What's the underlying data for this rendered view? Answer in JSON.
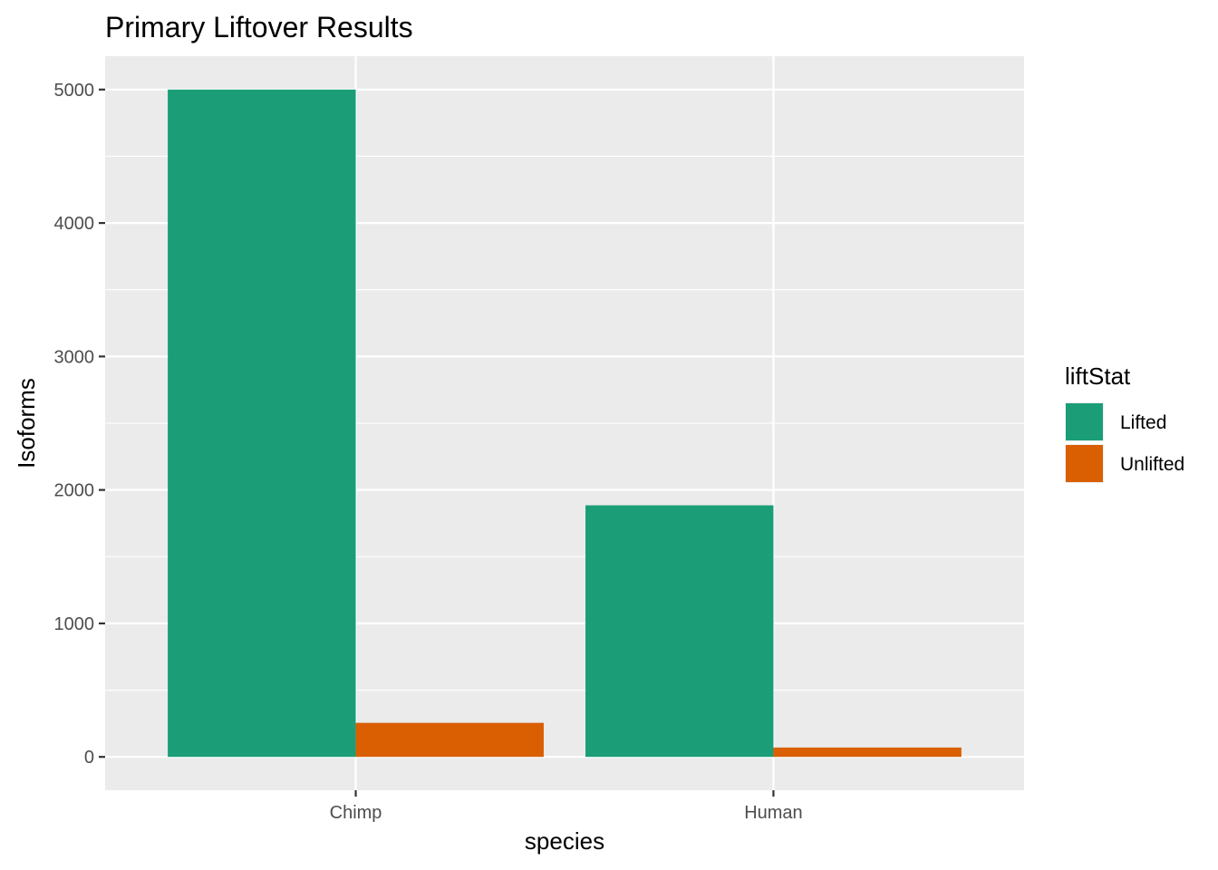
{
  "chart_data": {
    "type": "bar",
    "title": "Primary Liftover Results",
    "xlabel": "species",
    "ylabel": "Isoforms",
    "categories": [
      "Chimp",
      "Human"
    ],
    "series": [
      {
        "name": "Lifted",
        "values": [
          5000,
          1885
        ],
        "color": "#1b9e77"
      },
      {
        "name": "Unlifted",
        "values": [
          255,
          70
        ],
        "color": "#d95f02"
      }
    ],
    "ylim": [
      -250,
      5250
    ],
    "yticks": [
      0,
      1000,
      2000,
      3000,
      4000,
      5000
    ],
    "ytick_labels": [
      "0",
      "1000",
      "2000",
      "3000",
      "4000",
      "5000"
    ],
    "grid": true,
    "legend": {
      "title": "liftStat",
      "position": "right"
    },
    "panel_background": "#ebebeb"
  }
}
